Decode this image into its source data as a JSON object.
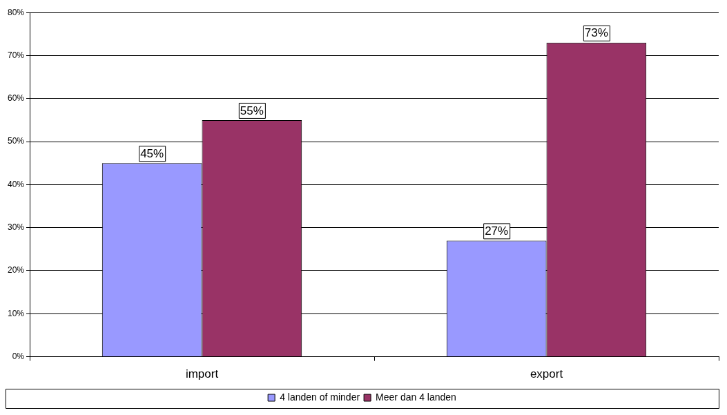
{
  "chart_data": {
    "type": "bar",
    "categories": [
      "import",
      "export"
    ],
    "series": [
      {
        "name": "4 landen of minder",
        "color": "#9999ff",
        "values": [
          45,
          27
        ],
        "value_labels": [
          "45%",
          "27%"
        ]
      },
      {
        "name": "Meer dan 4 landen",
        "color": "#993366",
        "values": [
          55,
          73
        ],
        "value_labels": [
          "55%",
          "73%"
        ]
      }
    ],
    "ylim": [
      0,
      80
    ],
    "yticks": [
      {
        "value": 0,
        "label": "0%"
      },
      {
        "value": 10,
        "label": "10%"
      },
      {
        "value": 20,
        "label": "20%"
      },
      {
        "value": 30,
        "label": "30%"
      },
      {
        "value": 40,
        "label": "40%"
      },
      {
        "value": 50,
        "label": "50%"
      },
      {
        "value": 60,
        "label": "60%"
      },
      {
        "value": 70,
        "label": "70%"
      },
      {
        "value": 80,
        "label": "80%"
      }
    ],
    "grid": "y",
    "legend": "bottom"
  }
}
